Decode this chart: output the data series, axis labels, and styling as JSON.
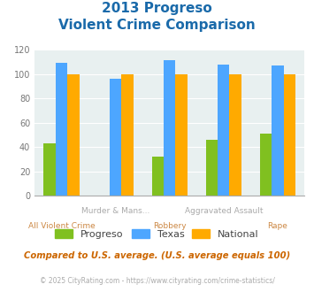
{
  "title_line1": "2013 Progreso",
  "title_line2": "Violent Crime Comparison",
  "categories": [
    "All Violent Crime",
    "Murder & Mans...",
    "Robbery",
    "Aggravated Assault",
    "Rape"
  ],
  "progreso": [
    43,
    0,
    32,
    46,
    51
  ],
  "texas": [
    109,
    96,
    111,
    108,
    107
  ],
  "national": [
    100,
    100,
    100,
    100,
    100
  ],
  "progreso_color": "#80c020",
  "texas_color": "#4da6ff",
  "national_color": "#ffaa00",
  "ylim": [
    0,
    120
  ],
  "yticks": [
    0,
    20,
    40,
    60,
    80,
    100,
    120
  ],
  "legend_labels": [
    "Progreso",
    "Texas",
    "National"
  ],
  "footnote1": "Compared to U.S. average. (U.S. average equals 100)",
  "footnote2": "© 2025 CityRating.com - https://www.cityrating.com/crime-statistics/",
  "bg_color": "#e8f0f0",
  "title_color": "#1a6aaa",
  "footnote1_color": "#cc6600",
  "footnote2_color": "#aaaaaa",
  "top_label_color": "#aaaaaa",
  "bottom_label_color": "#cc8844",
  "bar_width": 0.22,
  "group_positions": [
    0,
    1,
    2,
    3,
    4
  ]
}
